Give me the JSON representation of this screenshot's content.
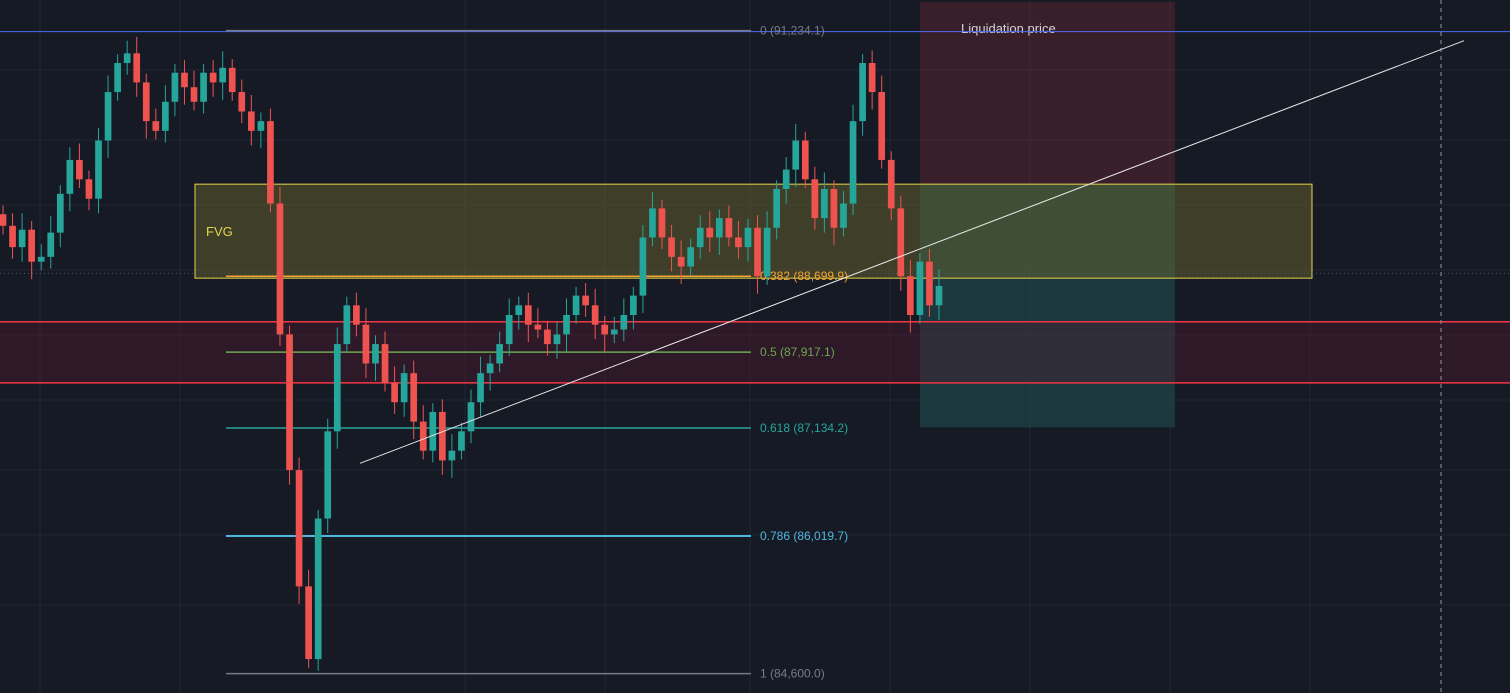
{
  "chart_data": {
    "type": "candlestick",
    "title": "",
    "fib_levels": [
      {
        "text": "0 (91,234.1)",
        "price": 91234.1,
        "color": "#787b86"
      },
      {
        "text": "0.382 (88,699.9)",
        "price": 88699.9,
        "color": "#f7a531"
      },
      {
        "text": "0.5 (87,917.1)",
        "price": 87917.1,
        "color": "#6ea84f"
      },
      {
        "text": "0.618 (87,134.2)",
        "price": 87134.2,
        "color": "#26a69a"
      },
      {
        "text": "0.786 (86,019.7)",
        "price": 86019.7,
        "color": "#4fb7dd"
      },
      {
        "text": "1 (84,600.0)",
        "price": 84600.0,
        "color": "#787b86"
      }
    ],
    "zones": {
      "fvg": {
        "label": "FVG",
        "price_top": 89650,
        "price_bottom": 88680,
        "color": "#e8d44d"
      },
      "liquidation": {
        "label": "Liquidation price",
        "price_top": 91530,
        "price_bottom": 89650,
        "color": "#7a2a35"
      },
      "support_band": {
        "price_top": 88230,
        "price_bottom": 87600,
        "color": "#f23645"
      },
      "target": {
        "price_top": 89650,
        "price_bottom": 87140,
        "color": "#1f5e5a"
      }
    },
    "trendline": {
      "start_price": 86770,
      "end_price": 91130
    },
    "current_price": 88730,
    "colors": {
      "up": "#26a69a",
      "down": "#ef5350",
      "background": "#161a25",
      "grid": "#232632"
    },
    "price_range": [
      84400,
      91550
    ],
    "candles_close": [
      89220,
      89000,
      89180,
      88850,
      88900,
      89150,
      89550,
      89900,
      89700,
      89500,
      90100,
      90600,
      90900,
      91000,
      90700,
      90300,
      90200,
      90500,
      90800,
      90650,
      90500,
      90800,
      90700,
      90850,
      90600,
      90400,
      90200,
      90300,
      89450,
      88100,
      86700,
      85500,
      84750,
      86200,
      87100,
      88000,
      88400,
      88200,
      87800,
      88000,
      87600,
      87400,
      87700,
      87200,
      86900,
      87300,
      86800,
      86900,
      87100,
      87400,
      87700,
      87800,
      88000,
      88300,
      88400,
      88200,
      88150,
      88000,
      88100,
      88300,
      88500,
      88400,
      88200,
      88100,
      88150,
      88300,
      88500,
      89100,
      89400,
      89100,
      88900,
      88800,
      89000,
      89200,
      89100,
      89300,
      89100,
      89000,
      89200,
      88700,
      89200,
      89600,
      89800,
      90100,
      89700,
      89300,
      89600,
      89200,
      89450,
      90300,
      90900,
      90600,
      89900,
      89400,
      88700,
      88300,
      88850,
      88400,
      88600
    ]
  }
}
